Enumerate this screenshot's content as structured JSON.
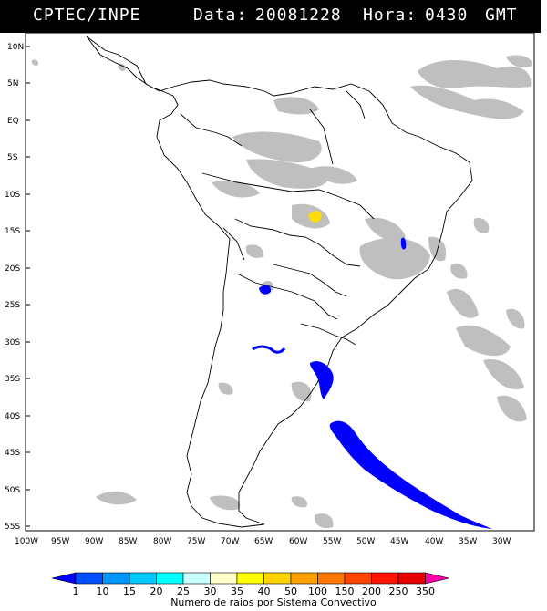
{
  "header": {
    "source": "CPTEC/INPE",
    "date_label": "Data:",
    "date_value": "20081228",
    "hour_label": "Hora:",
    "hour_value": "0430",
    "tz": "GMT"
  },
  "axes": {
    "lat_labels": [
      "10N",
      "5N",
      "EQ",
      "5S",
      "10S",
      "15S",
      "20S",
      "25S",
      "30S",
      "35S",
      "40S",
      "45S",
      "50S",
      "55S"
    ],
    "lon_labels": [
      "100W",
      "95W",
      "90W",
      "85W",
      "80W",
      "75W",
      "70W",
      "65W",
      "60W",
      "55W",
      "50W",
      "45W",
      "40W",
      "35W",
      "30W"
    ]
  },
  "colorbar": {
    "levels": [
      "1",
      "10",
      "15",
      "20",
      "25",
      "30",
      "35",
      "40",
      "50",
      "100",
      "150",
      "200",
      "250",
      "350"
    ],
    "colors": [
      "#0000ff",
      "#0050ff",
      "#0096ff",
      "#00c8ff",
      "#00ffff",
      "#c8ffff",
      "#ffffc8",
      "#ffff00",
      "#ffd200",
      "#ffa000",
      "#ff7800",
      "#ff4600",
      "#ff1400",
      "#e60000",
      "#ff00aa"
    ],
    "caption": "Numero de raios por Sistema Convectivo"
  },
  "colors": {
    "cloud_gray": "#b4b4b4",
    "storm_blue": "#0000ff",
    "storm_yellow": "#ffdd00",
    "coast": "#000000"
  }
}
